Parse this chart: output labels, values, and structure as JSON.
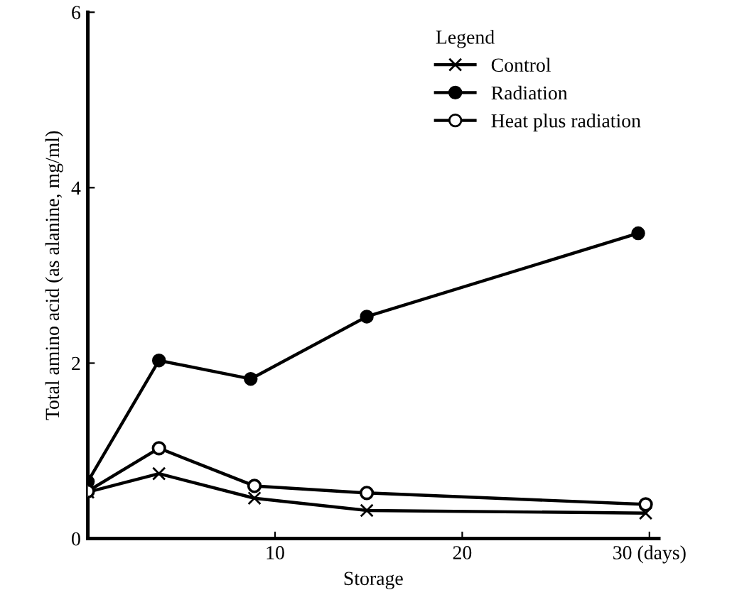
{
  "chart_data": {
    "type": "line",
    "xlabel": "Storage",
    "ylabel": "Total amino acid (as alanine, mg/ml)",
    "legend_title": "Legend",
    "legend": "top right",
    "grid": false,
    "line_style": "solid",
    "xlim": [
      0,
      30.5
    ],
    "xticks": [
      {
        "value": 0,
        "label": null
      },
      10,
      20,
      {
        "value": 30,
        "label": "30 (days)"
      }
    ],
    "ylim": [
      0,
      6
    ],
    "yticks": [
      0,
      2,
      4,
      6
    ],
    "series": [
      {
        "name": "Control",
        "color": "#000000",
        "marker": "cross",
        "x": [
          0,
          3.8,
          8.9,
          14.9,
          29.8
        ],
        "values": [
          0.53,
          0.74,
          0.46,
          0.32,
          0.29
        ]
      },
      {
        "name": "Radiation",
        "color": "#000000",
        "marker": "circle",
        "x": [
          0,
          3.8,
          8.7,
          14.9,
          29.4
        ],
        "values": [
          0.65,
          2.03,
          1.82,
          2.53,
          3.48
        ]
      },
      {
        "name": "Heat plus radiation",
        "color": "#000000",
        "marker": "circle",
        "colors": [
          "#ffffff",
          "#ffffff",
          "#ffffff",
          "#ffffff",
          "#ffffff"
        ],
        "x": [
          0,
          3.8,
          8.9,
          14.9,
          29.8
        ],
        "values": [
          0.54,
          1.03,
          0.6,
          0.52,
          0.39
        ]
      }
    ]
  }
}
